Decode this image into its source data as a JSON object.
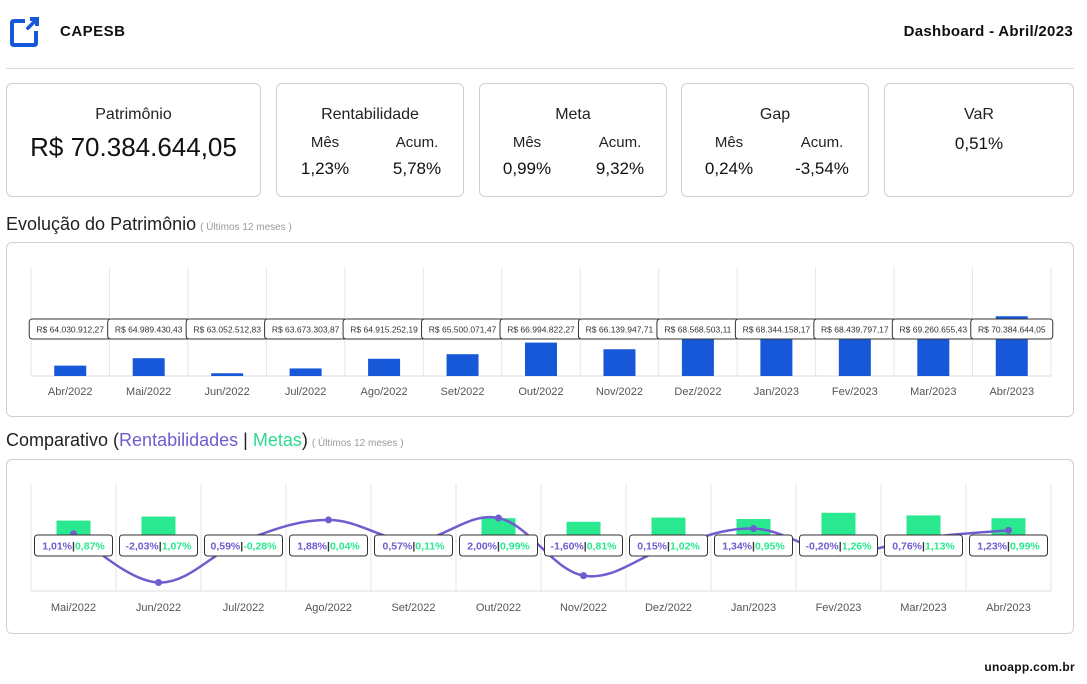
{
  "header": {
    "logo_icon": "square-logo-icon",
    "brand": "CAPESB",
    "title": "Dashboard - Abril/2023"
  },
  "cards": {
    "patrimonio": {
      "title": "Patrimônio",
      "value": "R$ 70.384.644,05"
    },
    "rentabilidade": {
      "title": "Rentabilidade",
      "mes_label": "Mês",
      "acum_label": "Acum.",
      "mes": "1,23%",
      "acum": "5,78%"
    },
    "meta": {
      "title": "Meta",
      "mes_label": "Mês",
      "acum_label": "Acum.",
      "mes": "0,99%",
      "acum": "9,32%"
    },
    "gap": {
      "title": "Gap",
      "mes_label": "Mês",
      "acum_label": "Acum.",
      "mes": "0,24%",
      "acum": "-3,54%"
    },
    "var": {
      "title": "VaR",
      "value": "0,51%"
    }
  },
  "sections": {
    "evolucao": {
      "title": "Evolução do Patrimônio",
      "sub": "( Últimos 12 meses )"
    },
    "comparativo": {
      "title": "Comparativo (",
      "rent": "Rentabilidades",
      "sep": " | ",
      "meta": "Metas",
      "close": ")",
      "sub": "( Últimos 12 meses )"
    }
  },
  "colors": {
    "bar_blue": "#1658d8",
    "line_purple": "#6f5ccf",
    "bar_green": "#2ae88f",
    "grid": "#e6e6e6"
  },
  "chart_data": [
    {
      "type": "bar",
      "categories": [
        "Abr/2022",
        "Mai/2022",
        "Jun/2022",
        "Jul/2022",
        "Ago/2022",
        "Set/2022",
        "Out/2022",
        "Nov/2022",
        "Dez/2022",
        "Jan/2023",
        "Fev/2023",
        "Mar/2023",
        "Abr/2023"
      ],
      "values": [
        64030912.27,
        64989430.43,
        63052512.83,
        63673303.87,
        64915252.19,
        65500071.47,
        66994822.27,
        66139947.71,
        68568503.11,
        68344158.17,
        68439797.17,
        69260655.43,
        70384644.05
      ],
      "labels": [
        "R$ 64.030.912,27",
        "R$ 64.989.430,43",
        "R$ 63.052.512,83",
        "R$ 63.673.303,87",
        "R$ 64.915.252,19",
        "R$ 65.500.071,47",
        "R$ 66.994.822,27",
        "R$ 66.139.947,71",
        "R$ 68.568.503,11",
        "R$ 68.344.158,17",
        "R$ 68.439.797,17",
        "R$ 69.260.655,43",
        "R$ 70.384.644,05"
      ],
      "grid": true
    },
    {
      "type": "bar+line",
      "categories": [
        "Mai/2022",
        "Jun/2022",
        "Jul/2022",
        "Ago/2022",
        "Set/2022",
        "Out/2022",
        "Nov/2022",
        "Dez/2022",
        "Jan/2023",
        "Fev/2023",
        "Mar/2023",
        "Abr/2023"
      ],
      "series": [
        {
          "name": "Rentabilidades",
          "type": "line",
          "values": [
            1.01,
            -2.03,
            0.59,
            1.88,
            0.57,
            2.0,
            -1.6,
            0.15,
            1.34,
            -0.2,
            0.76,
            1.23
          ]
        },
        {
          "name": "Metas",
          "type": "bar",
          "values": [
            0.87,
            1.07,
            -0.28,
            0.04,
            0.11,
            0.99,
            0.81,
            1.02,
            0.95,
            1.26,
            1.13,
            0.99
          ]
        }
      ],
      "labels_rent": [
        "1,01%",
        "-2,03%",
        "0,59%",
        "1,88%",
        "0,57%",
        "2,00%",
        "-1,60%",
        "0,15%",
        "1,34%",
        "-0,20%",
        "0,76%",
        "1,23%"
      ],
      "labels_meta": [
        "0,87%",
        "1,07%",
        "-0,28%",
        "0,04%",
        "0,11%",
        "0,99%",
        "0,81%",
        "1,02%",
        "0,95%",
        "1,26%",
        "1,13%",
        "0,99%"
      ],
      "label_separator": "|",
      "grid": true
    }
  ],
  "footer": {
    "text": "unoapp.com.br"
  }
}
